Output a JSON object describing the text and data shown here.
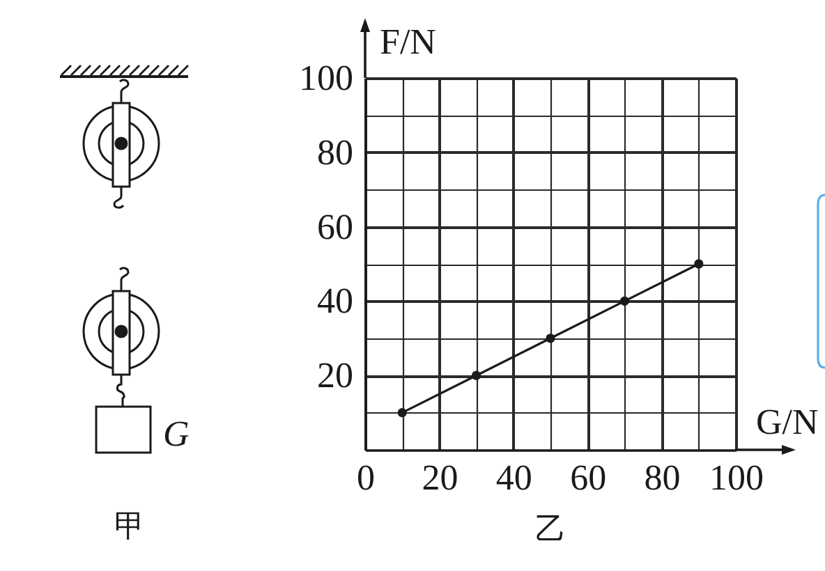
{
  "chart_data": {
    "type": "line",
    "title": "乙",
    "xlabel": "G/N",
    "ylabel": "F/N",
    "x": [
      10,
      30,
      50,
      70,
      90
    ],
    "series": [
      {
        "color": "#1a1a1a",
        "values": [
          10,
          20,
          30,
          40,
          50
        ]
      }
    ],
    "xlim": [
      0,
      100
    ],
    "ylim": [
      0,
      100
    ],
    "xticks": [
      0,
      {
        "value": 10,
        "label": null
      },
      20,
      {
        "value": 30,
        "label": null
      },
      40,
      {
        "value": 50,
        "label": null
      },
      60,
      {
        "value": 70,
        "label": null
      },
      80,
      {
        "value": 90,
        "label": null
      },
      100
    ],
    "yticks": [
      {
        "value": 0,
        "label": null
      },
      {
        "value": 10,
        "label": null
      },
      20,
      {
        "value": 30,
        "label": null
      },
      40,
      {
        "value": 50,
        "label": null
      },
      60,
      {
        "value": 70,
        "label": null
      },
      80,
      {
        "value": 90,
        "label": null
      },
      100
    ],
    "grid": true,
    "marker": "circle",
    "line_style": "solid",
    "annotations": [
      "G",
      "甲"
    ]
  }
}
